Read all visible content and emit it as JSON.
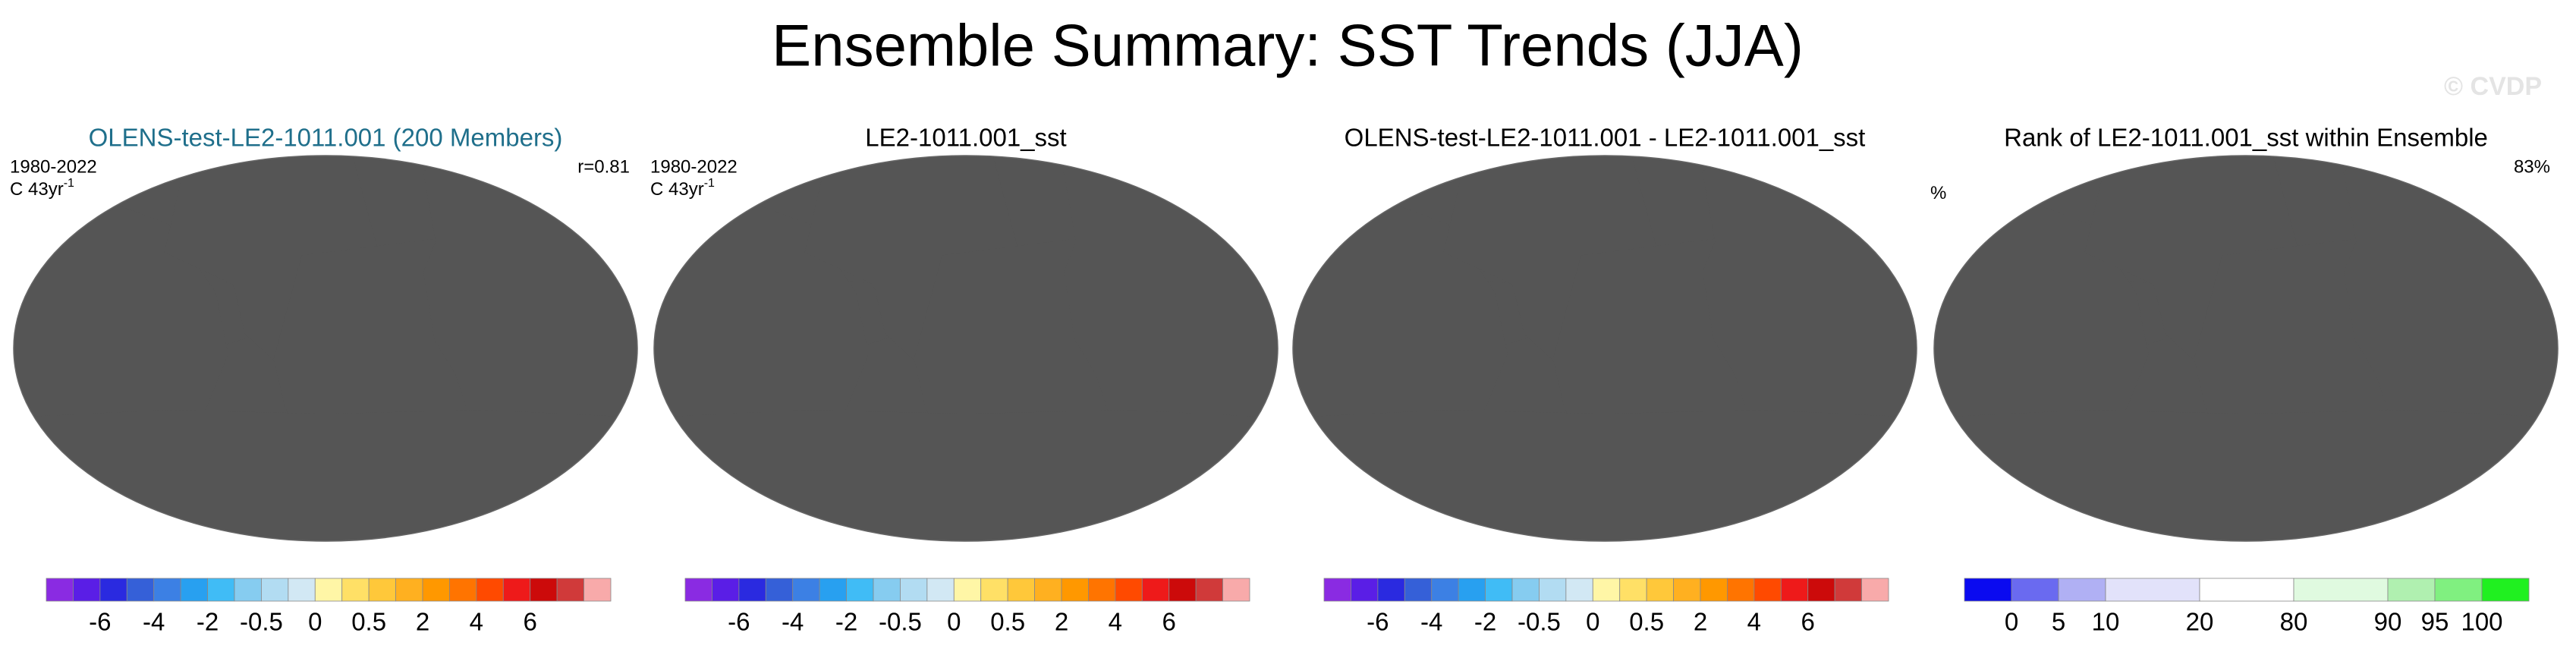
{
  "title": "Ensemble Summary: SST Trends (JJA)",
  "watermark": "© CVDP",
  "panels": [
    {
      "title": "OLENS-test-LE2-1011.001 (200 Members)",
      "title_color": "#1f6f8b",
      "period": "1980-2022",
      "units": "C 43yr",
      "units_exponent": "-1",
      "corner": "r=0.81"
    },
    {
      "title": "LE2-1011.001_sst",
      "title_color": "#000000",
      "period": "1980-2022",
      "units": "C 43yr",
      "units_exponent": "-1"
    },
    {
      "title": "OLENS-test-LE2-1011.001 - LE2-1011.001_sst",
      "title_color": "#000000"
    },
    {
      "title": "Rank of LE2-1011.001_sst within Ensemble",
      "title_color": "#000000",
      "units": "%",
      "corner": "83%"
    }
  ],
  "colorbars": [
    {
      "colors": [
        "#8a2be2",
        "#5a1ee6",
        "#2a2ae0",
        "#3560d8",
        "#3c80e4",
        "#28a0f0",
        "#40bcf6",
        "#86ccf0",
        "#b2dcf2",
        "#d2e8f4",
        "#fff6a6",
        "#ffe066",
        "#ffc83a",
        "#ffb020",
        "#ff9800",
        "#ff7400",
        "#ff4a00",
        "#ee1a1a",
        "#cc0a0a",
        "#d03a3a",
        "#f8aaaa"
      ],
      "ticks": [
        -6,
        -4,
        -2,
        -0.5,
        0,
        0.5,
        2,
        4,
        6
      ]
    },
    {
      "colors": [
        "#8a2be2",
        "#5a1ee6",
        "#2a2ae0",
        "#3560d8",
        "#3c80e4",
        "#28a0f0",
        "#40bcf6",
        "#86ccf0",
        "#b2dcf2",
        "#d2e8f4",
        "#fff6a6",
        "#ffe066",
        "#ffc83a",
        "#ffb020",
        "#ff9800",
        "#ff7400",
        "#ff4a00",
        "#ee1a1a",
        "#cc0a0a",
        "#d03a3a",
        "#f8aaaa"
      ],
      "ticks": [
        -6,
        -4,
        -2,
        -0.5,
        0,
        0.5,
        2,
        4,
        6
      ]
    },
    {
      "colors": [
        "#8a2be2",
        "#5a1ee6",
        "#2a2ae0",
        "#3560d8",
        "#3c80e4",
        "#28a0f0",
        "#40bcf6",
        "#86ccf0",
        "#b2dcf2",
        "#d2e8f4",
        "#fff6a6",
        "#ffe066",
        "#ffc83a",
        "#ffb020",
        "#ff9800",
        "#ff7400",
        "#ff4a00",
        "#ee1a1a",
        "#cc0a0a",
        "#d03a3a",
        "#f8aaaa"
      ],
      "ticks": [
        -6,
        -4,
        -2,
        -0.5,
        0,
        0.5,
        2,
        4,
        6
      ]
    },
    {
      "colors": [
        "#0a0af0",
        "#6a6af0",
        "#b0b0f4",
        "#e2e2fa",
        "#ffffff",
        "#e0fae0",
        "#b0f0b0",
        "#80f080",
        "#20f020"
      ],
      "ticks": [
        0,
        5,
        10,
        20,
        80,
        90,
        95,
        100
      ]
    }
  ]
}
